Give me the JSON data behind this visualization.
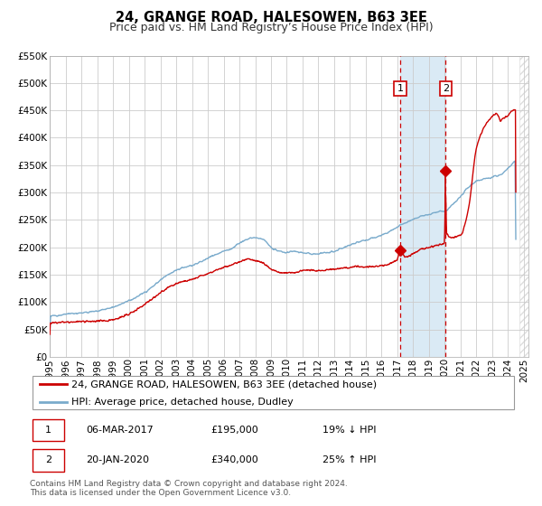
{
  "title": "24, GRANGE ROAD, HALESOWEN, B63 3EE",
  "subtitle": "Price paid vs. HM Land Registry’s House Price Index (HPI)",
  "ylim": [
    0,
    550000
  ],
  "yticks": [
    0,
    50000,
    100000,
    150000,
    200000,
    250000,
    300000,
    350000,
    400000,
    450000,
    500000,
    550000
  ],
  "ytick_labels": [
    "£0",
    "£50K",
    "£100K",
    "£150K",
    "£200K",
    "£250K",
    "£300K",
    "£350K",
    "£400K",
    "£450K",
    "£500K",
    "£550K"
  ],
  "xlim_start": 1995.0,
  "xlim_end": 2025.3,
  "xticks": [
    1995,
    1996,
    1997,
    1998,
    1999,
    2000,
    2001,
    2002,
    2003,
    2004,
    2005,
    2006,
    2007,
    2008,
    2009,
    2010,
    2011,
    2012,
    2013,
    2014,
    2015,
    2016,
    2017,
    2018,
    2019,
    2020,
    2021,
    2022,
    2023,
    2024,
    2025
  ],
  "red_color": "#cc0000",
  "blue_color": "#7aabcc",
  "bg_color": "#ffffff",
  "grid_color": "#cccccc",
  "shade_color": "#daeaf5",
  "hatch_color": "#dddddd",
  "event1_x": 2017.18,
  "event1_y": 195000,
  "event2_x": 2020.05,
  "event2_y": 340000,
  "event2_line_bottom": 225000,
  "legend_line1": "24, GRANGE ROAD, HALESOWEN, B63 3EE (detached house)",
  "legend_line2": "HPI: Average price, detached house, Dudley",
  "table_row1": [
    "1",
    "06-MAR-2017",
    "£195,000",
    "19% ↓ HPI"
  ],
  "table_row2": [
    "2",
    "20-JAN-2020",
    "£340,000",
    "25% ↑ HPI"
  ],
  "footnote1": "Contains HM Land Registry data © Crown copyright and database right 2024.",
  "footnote2": "This data is licensed under the Open Government Licence v3.0.",
  "title_fontsize": 10.5,
  "subtitle_fontsize": 9,
  "tick_fontsize": 7.5,
  "legend_fontsize": 8,
  "table_fontsize": 8,
  "footnote_fontsize": 6.5
}
